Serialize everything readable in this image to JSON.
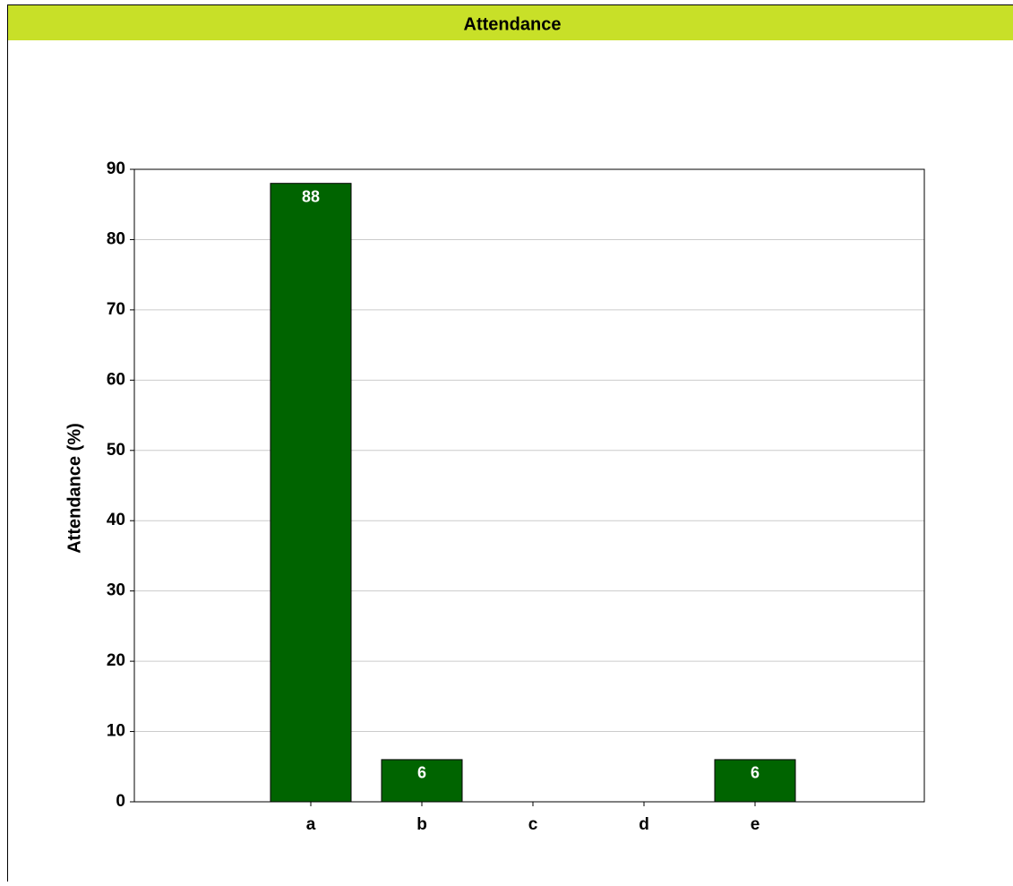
{
  "chart_data": {
    "type": "bar",
    "title": "Attendance",
    "y_label": "Attendance  (%)",
    "categories": [
      "a",
      "b",
      "c",
      "d",
      "e"
    ],
    "values": [
      88,
      6,
      0,
      0,
      6
    ],
    "color": "#006400",
    "ylim": [
      0,
      90
    ],
    "yticks": [
      0,
      10,
      20,
      30,
      40,
      50,
      60,
      70,
      80,
      90
    ],
    "grid": true
  }
}
